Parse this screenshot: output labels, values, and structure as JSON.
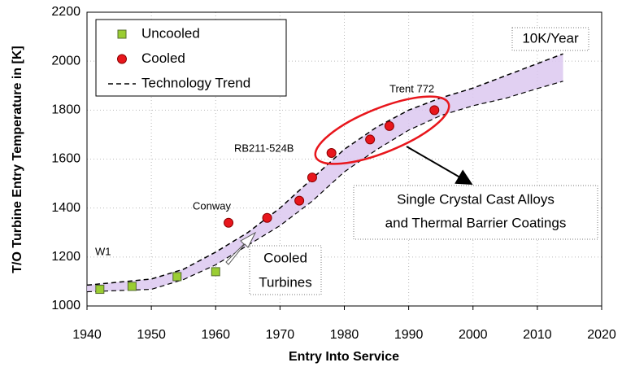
{
  "chart_data": {
    "type": "scatter",
    "xlabel": "Entry Into Service",
    "ylabel": "T/O Turbine Entry Temperature in [K]",
    "xlim": [
      1940,
      2020
    ],
    "xticks": [
      1940,
      1950,
      1960,
      1970,
      1980,
      1990,
      2000,
      2010,
      2020
    ],
    "ylim": [
      1000,
      2200
    ],
    "yticks": [
      1000,
      1200,
      1400,
      1600,
      1800,
      2000,
      2200
    ],
    "grid": true,
    "series": [
      {
        "name": "Uncooled",
        "color": "#9acd32",
        "marker": "square",
        "x": [
          1942,
          1947,
          1954,
          1960
        ],
        "values": [
          1068,
          1080,
          1120,
          1140
        ]
      },
      {
        "name": "Cooled",
        "color": "#e8161c",
        "marker": "circle",
        "x": [
          1962,
          1968,
          1973,
          1975,
          1978,
          1984,
          1987,
          1994
        ],
        "values": [
          1340,
          1360,
          1430,
          1525,
          1625,
          1680,
          1735,
          1800
        ]
      },
      {
        "name": "Technology Trend",
        "color": "#000000",
        "marker": "dashed",
        "x": [
          1940,
          1950,
          1955,
          1960,
          1965,
          1970,
          1975,
          1980,
          1985,
          1990,
          1995,
          2000,
          2005,
          2010,
          2014
        ],
        "values": [
          1085,
          1110,
          1150,
          1220,
          1300,
          1400,
          1520,
          1640,
          1730,
          1800,
          1850,
          1890,
          1940,
          1990,
          2030
        ],
        "band_lower": [
          1058,
          1068,
          1108,
          1168,
          1248,
          1328,
          1428,
          1548,
          1638,
          1718,
          1778,
          1818,
          1848,
          1888,
          1918
        ],
        "band_color": "#dcc8f0"
      }
    ],
    "annotations": {
      "rate": "10K/Year",
      "trent": "Trent 772",
      "rb": "RB211-524B",
      "conway": "Conway",
      "w1": "W1",
      "sc1": "Single Crystal Cast Alloys",
      "sc2": "and Thermal Barrier Coatings",
      "ct1": "Cooled",
      "ct2": "Turbines"
    }
  }
}
